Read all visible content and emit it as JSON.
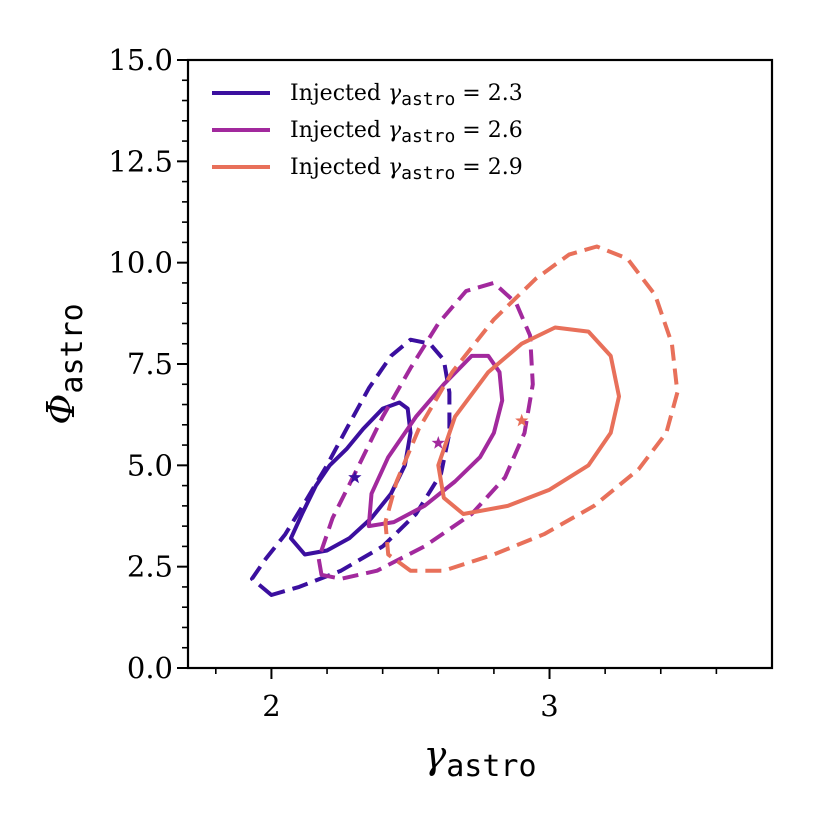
{
  "chart_data": {
    "type": "contour",
    "xlabel": {
      "symbol": "γ",
      "sub": "astro"
    },
    "ylabel": {
      "symbol": "Φ",
      "sub": "astro"
    },
    "xlim": [
      1.7,
      3.8
    ],
    "ylim": [
      0.0,
      15.0
    ],
    "xticks": [
      2,
      3
    ],
    "xtick_labels": [
      "2",
      "3"
    ],
    "yticks": [
      0.0,
      2.5,
      5.0,
      7.5,
      10.0,
      12.5,
      15.0
    ],
    "ytick_labels": [
      "0.0",
      "2.5",
      "5.0",
      "7.5",
      "10.0",
      "12.5",
      "15.0"
    ],
    "legend_placement": "top-left",
    "series": [
      {
        "label": {
          "prefix": "Injected ",
          "symbol": "γ",
          "sub": "astro",
          "suffix": " = 2.3"
        },
        "color": "#3b0f9f",
        "injected": [
          2.3,
          4.7
        ],
        "inner": [
          [
            2.12,
            2.8
          ],
          [
            2.07,
            3.2
          ],
          [
            2.11,
            3.8
          ],
          [
            2.16,
            4.5
          ],
          [
            2.21,
            5.0
          ],
          [
            2.27,
            5.4
          ],
          [
            2.33,
            5.9
          ],
          [
            2.4,
            6.4
          ],
          [
            2.46,
            6.55
          ],
          [
            2.49,
            6.4
          ],
          [
            2.5,
            5.8
          ],
          [
            2.48,
            5.0
          ],
          [
            2.43,
            4.3
          ],
          [
            2.36,
            3.7
          ],
          [
            2.28,
            3.2
          ],
          [
            2.2,
            2.9
          ],
          [
            2.12,
            2.8
          ]
        ],
        "outer": [
          [
            2.0,
            1.8
          ],
          [
            1.93,
            2.2
          ],
          [
            1.98,
            2.7
          ],
          [
            2.05,
            3.3
          ],
          [
            2.13,
            4.2
          ],
          [
            2.2,
            5.0
          ],
          [
            2.27,
            5.9
          ],
          [
            2.35,
            6.9
          ],
          [
            2.43,
            7.7
          ],
          [
            2.5,
            8.1
          ],
          [
            2.57,
            8.0
          ],
          [
            2.62,
            7.6
          ],
          [
            2.64,
            6.8
          ],
          [
            2.64,
            5.8
          ],
          [
            2.61,
            4.8
          ],
          [
            2.52,
            3.8
          ],
          [
            2.4,
            3.0
          ],
          [
            2.25,
            2.4
          ],
          [
            2.1,
            2.0
          ],
          [
            2.0,
            1.8
          ]
        ]
      },
      {
        "label": {
          "prefix": "Injected ",
          "symbol": "γ",
          "sub": "astro",
          "suffix": " = 2.6"
        },
        "color": "#a2299d",
        "injected": [
          2.6,
          5.55
        ],
        "inner": [
          [
            2.35,
            3.5
          ],
          [
            2.36,
            4.3
          ],
          [
            2.42,
            5.2
          ],
          [
            2.52,
            6.2
          ],
          [
            2.62,
            7.0
          ],
          [
            2.72,
            7.7
          ],
          [
            2.78,
            7.7
          ],
          [
            2.82,
            7.3
          ],
          [
            2.83,
            6.6
          ],
          [
            2.8,
            5.8
          ],
          [
            2.75,
            5.2
          ],
          [
            2.66,
            4.6
          ],
          [
            2.55,
            4.0
          ],
          [
            2.44,
            3.6
          ],
          [
            2.35,
            3.5
          ]
        ],
        "outer": [
          [
            2.18,
            2.3
          ],
          [
            2.17,
            2.7
          ],
          [
            2.22,
            3.7
          ],
          [
            2.3,
            4.8
          ],
          [
            2.4,
            6.2
          ],
          [
            2.5,
            7.4
          ],
          [
            2.6,
            8.5
          ],
          [
            2.7,
            9.3
          ],
          [
            2.8,
            9.5
          ],
          [
            2.88,
            9.0
          ],
          [
            2.93,
            8.2
          ],
          [
            2.94,
            7.0
          ],
          [
            2.91,
            5.8
          ],
          [
            2.84,
            4.7
          ],
          [
            2.72,
            3.8
          ],
          [
            2.55,
            3.0
          ],
          [
            2.38,
            2.4
          ],
          [
            2.25,
            2.2
          ],
          [
            2.18,
            2.3
          ]
        ]
      },
      {
        "label": {
          "prefix": "Injected ",
          "symbol": "γ",
          "sub": "astro",
          "suffix": " = 2.9"
        },
        "color": "#e8705a",
        "injected": [
          2.9,
          6.1
        ],
        "inner": [
          [
            2.69,
            3.8
          ],
          [
            2.62,
            4.2
          ],
          [
            2.6,
            5.0
          ],
          [
            2.66,
            6.2
          ],
          [
            2.78,
            7.3
          ],
          [
            2.9,
            8.0
          ],
          [
            3.02,
            8.4
          ],
          [
            3.14,
            8.3
          ],
          [
            3.22,
            7.7
          ],
          [
            3.25,
            6.7
          ],
          [
            3.22,
            5.8
          ],
          [
            3.14,
            5.0
          ],
          [
            3.0,
            4.4
          ],
          [
            2.85,
            4.0
          ],
          [
            2.69,
            3.8
          ]
        ],
        "outer": [
          [
            2.5,
            2.4
          ],
          [
            2.42,
            2.8
          ],
          [
            2.41,
            3.6
          ],
          [
            2.45,
            4.6
          ],
          [
            2.53,
            5.9
          ],
          [
            2.65,
            7.3
          ],
          [
            2.8,
            8.6
          ],
          [
            2.95,
            9.6
          ],
          [
            3.07,
            10.2
          ],
          [
            3.17,
            10.4
          ],
          [
            3.28,
            10.1
          ],
          [
            3.38,
            9.2
          ],
          [
            3.44,
            8.0
          ],
          [
            3.46,
            6.8
          ],
          [
            3.42,
            5.8
          ],
          [
            3.32,
            4.9
          ],
          [
            3.16,
            4.0
          ],
          [
            2.98,
            3.3
          ],
          [
            2.8,
            2.8
          ],
          [
            2.62,
            2.4
          ],
          [
            2.5,
            2.4
          ]
        ]
      }
    ]
  }
}
